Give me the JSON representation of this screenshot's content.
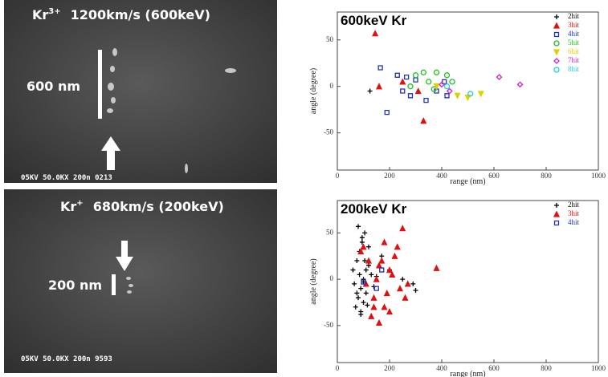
{
  "images": [
    {
      "label": {
        "element": "Kr",
        "charge": "3+",
        "text": "1200km/s (600keV)"
      },
      "scale": "600 nm",
      "footer": "05KV  50.0KX  200n 0213"
    },
    {
      "label": {
        "element": "Kr",
        "charge": "+",
        "text": "680km/s (200keV)"
      },
      "scale": "200 nm",
      "footer": "05KV  50.0KX  200n 9593"
    }
  ],
  "chart_data": [
    {
      "type": "scatter",
      "title": "600keV Kr",
      "x_label": "range (nm)",
      "y_label": "angle (degree)",
      "xlim": [
        0,
        1000
      ],
      "xticks": [
        0,
        200,
        400,
        600,
        800,
        1000
      ],
      "ylim": [
        -90,
        80
      ],
      "yticks": [
        -50,
        0,
        50
      ],
      "series": [
        {
          "name": "2hit",
          "color": "#000000",
          "marker": "plus",
          "x": [
            125
          ],
          "values": [
            -5
          ]
        },
        {
          "name": "3hit",
          "color": "#e01010",
          "marker": "triangle",
          "x": [
            145,
            160,
            330,
            250,
            310
          ],
          "values": [
            57,
            0,
            -37,
            5,
            -5
          ]
        },
        {
          "name": "4hit",
          "color": "#2030c0",
          "marker": "square",
          "x": [
            165,
            190,
            230,
            250,
            265,
            280,
            300,
            340,
            380,
            420,
            410
          ],
          "values": [
            20,
            -28,
            12,
            -5,
            10,
            -10,
            7,
            -15,
            -5,
            -10,
            5
          ]
        },
        {
          "name": "5hit",
          "color": "#20c020",
          "marker": "circle",
          "x": [
            280,
            300,
            330,
            350,
            380,
            420,
            440,
            370
          ],
          "values": [
            0,
            12,
            15,
            5,
            15,
            12,
            5,
            -3
          ]
        },
        {
          "name": "6hit",
          "color": "#e0d000",
          "marker": "down",
          "x": [
            460,
            500,
            550,
            380
          ],
          "values": [
            -10,
            -12,
            -8,
            0
          ]
        },
        {
          "name": "7hit",
          "color": "#d020d0",
          "marker": "diamond",
          "x": [
            400,
            620,
            700,
            430
          ],
          "values": [
            2,
            10,
            2,
            -5
          ]
        },
        {
          "name": "8hit",
          "color": "#20d0d0",
          "marker": "circle",
          "x": [
            510,
            420
          ],
          "values": [
            -8,
            0
          ]
        }
      ]
    },
    {
      "type": "scatter",
      "title": "200keV Kr",
      "x_label": "range (nm)",
      "y_label": "angle (degree)",
      "xlim": [
        0,
        1000
      ],
      "xticks": [
        0,
        200,
        400,
        600,
        800,
        1000
      ],
      "ylim": [
        -90,
        85
      ],
      "yticks": [
        -50,
        0,
        50
      ],
      "series": [
        {
          "name": "2hit",
          "color": "#000000",
          "marker": "plus",
          "x": [
            70,
            80,
            90,
            100,
            110,
            75,
            85,
            95,
            105,
            120,
            130,
            65,
            90,
            100,
            110,
            140,
            150,
            80,
            95,
            120,
            170,
            200,
            250,
            290,
            300,
            85,
            100,
            115,
            60,
            75,
            90,
            105
          ],
          "values": [
            -30,
            -20,
            -10,
            0,
            10,
            20,
            30,
            40,
            50,
            15,
            5,
            -5,
            -35,
            -25,
            -15,
            -8,
            3,
            57,
            45,
            35,
            25,
            10,
            0,
            -5,
            -12,
            5,
            -3,
            -28,
            10,
            -15,
            -38,
            20
          ]
        },
        {
          "name": "3hit",
          "color": "#e01010",
          "marker": "triangle",
          "x": [
            100,
            120,
            140,
            160,
            180,
            200,
            220,
            240,
            260,
            150,
            170,
            190,
            210,
            230,
            130,
            110,
            160,
            200,
            250,
            380,
            90,
            140,
            180,
            270
          ],
          "values": [
            35,
            20,
            -20,
            -47,
            -30,
            10,
            25,
            -10,
            -20,
            0,
            20,
            -15,
            5,
            35,
            -40,
            -5,
            15,
            -35,
            55,
            12,
            30,
            -30,
            40,
            -5
          ]
        },
        {
          "name": "4hit",
          "color": "#2030c0",
          "marker": "square",
          "x": [
            150,
            170,
            100
          ],
          "values": [
            -10,
            10,
            -3
          ]
        }
      ]
    }
  ]
}
